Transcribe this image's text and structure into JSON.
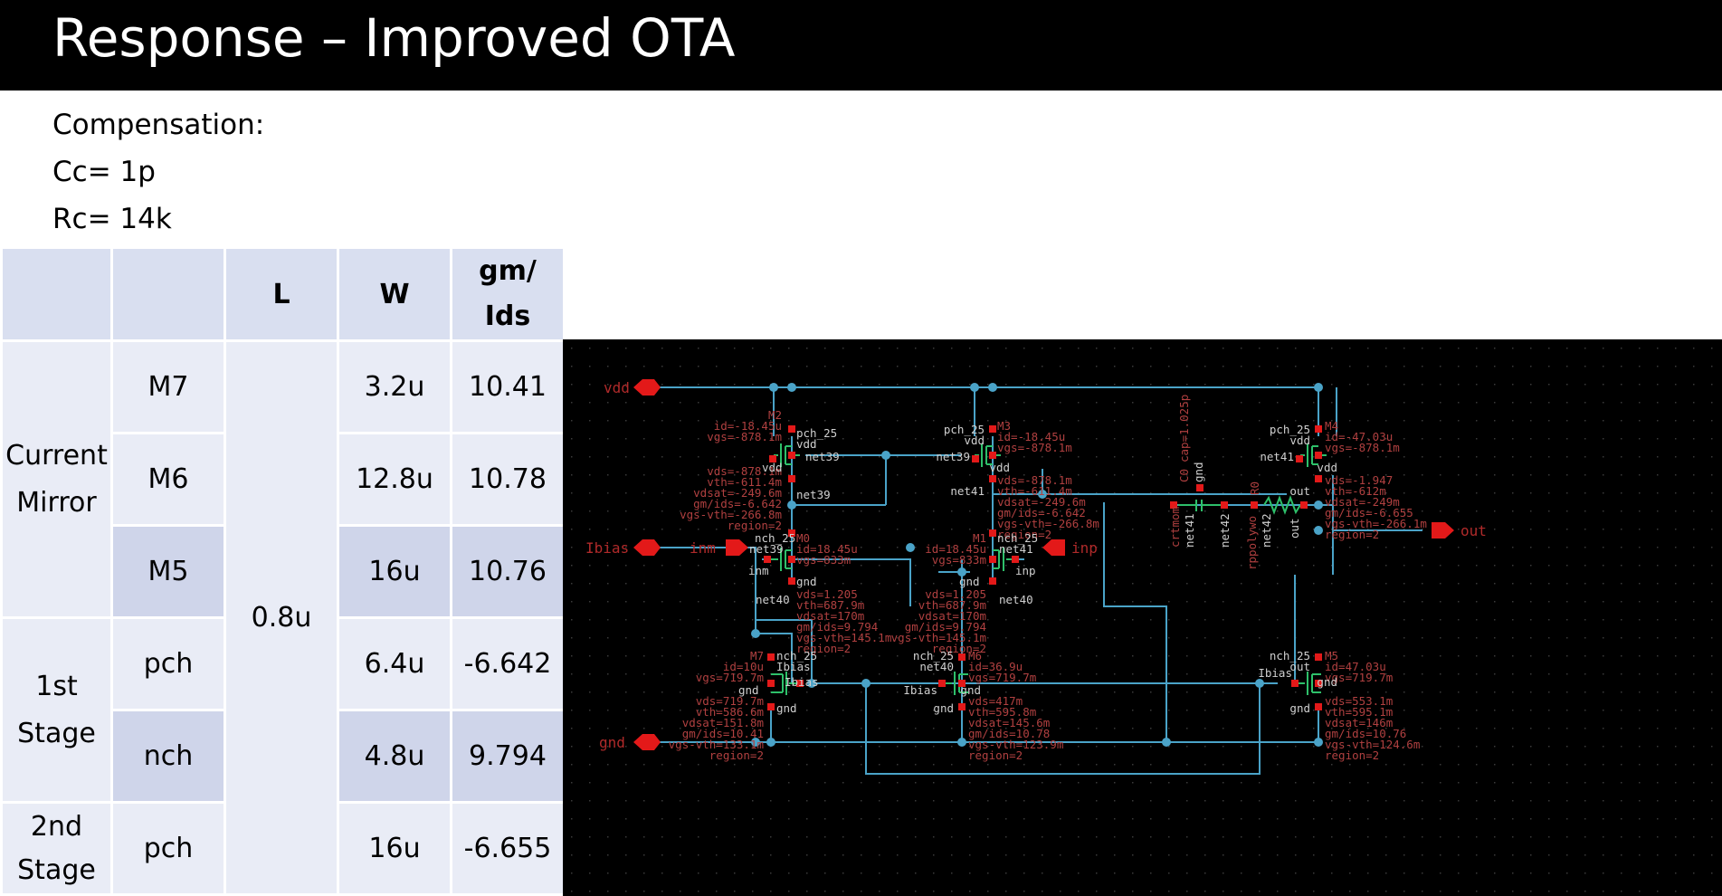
{
  "slide": {
    "title": "Response – Improved OTA"
  },
  "compensation": {
    "heading": "Compensation:",
    "cc": "Cc= 1p",
    "rc": "Rc= 14k"
  },
  "table": {
    "headers": [
      "",
      "",
      "L",
      "W",
      "gm/",
      "Ids"
    ],
    "groups": [
      "Current",
      "Mirror",
      "1st",
      "Stage",
      "2nd",
      "Stage"
    ],
    "shared_L": "0.8u",
    "rows": [
      {
        "device": "M7",
        "w": "3.2u",
        "gmids": "10.41"
      },
      {
        "device": "M6",
        "w": "12.8u",
        "gmids": "10.78"
      },
      {
        "device": "M5",
        "w": "16u",
        "gmids": "10.76"
      },
      {
        "device": "pch",
        "w": "6.4u",
        "gmids": "-6.642"
      },
      {
        "device": "nch",
        "w": "4.8u",
        "gmids": "9.794"
      },
      {
        "device": "pch",
        "w": "16u",
        "gmids": "-6.655"
      }
    ]
  },
  "schematic": {
    "pins": {
      "vdd": "vdd",
      "ibias": "Ibias",
      "gnd": "gnd",
      "inm": "inm",
      "inp": "inp",
      "out": "out"
    },
    "m2": {
      "name": "M2",
      "model": "pch_25",
      "id": "id=-18.45u",
      "vgs": "vgs=-878.1m",
      "vds": "vds=-878.1m",
      "vth": "vth=-611.4m",
      "vdsat": "vdsat=-249.6m",
      "gmids": "gm/ids=-6.642",
      "vov": "vgs-vth=-266.8m",
      "region": "region=2",
      "t_top": "vdd",
      "t_gate": "net39",
      "t_body": "vdd",
      "t_bot": "net39"
    },
    "m3": {
      "name": "M3",
      "model": "pch_25",
      "id": "id=-18.45u",
      "vgs": "vgs=-878.1m",
      "vds": "vds=-878.1m",
      "vth": "vth=-611.4m",
      "vdsat": "vdsat=-249.6m",
      "gmids": "gm/ids=-6.642",
      "vov": "vgs-vth=-266.8m",
      "region": "region=2",
      "t_top": "vdd",
      "t_gate": "net39",
      "t_body": "vdd",
      "t_bot": "net41"
    },
    "m4": {
      "name": "M4",
      "model": "pch_25",
      "id": "id=-47.03u",
      "vgs": "vgs=-878.1m",
      "vds": "vds=-1.947",
      "vth": "vth=-612m",
      "vdsat": "vdsat=-249m",
      "gmids": "gm/ids=-6.655",
      "vov": "vgs-vth=-266.1m",
      "region": "region=2",
      "t_top": "vdd",
      "t_gate": "net41",
      "t_body": "vdd",
      "t_bot": "out"
    },
    "m0": {
      "name": "M0",
      "model": "nch_25",
      "id": "id=18.45u",
      "vgs": "vgs=833m",
      "vds": "vds=1.205",
      "vth": "vth=687.9m",
      "vdsat": "vdsat=170m",
      "gmids": "gm/ids=9.794",
      "vov": "vgs-vth=145.1m",
      "region": "region=2",
      "t_top": "net39",
      "t_gate": "inm",
      "t_body": "gnd",
      "t_bot": "net40"
    },
    "m1": {
      "name": "M1",
      "model": "nch_25",
      "id": "id=18.45u",
      "vgs": "vgs=833m",
      "vds": "vds=1.205",
      "vth": "vth=687.9m",
      "vdsat": "vdsat=170m",
      "gmids": "gm/ids=9.794",
      "vov": "vgs-vth=145.1m",
      "region": "region=2",
      "t_top": "net41",
      "t_gate": "inp",
      "t_body": "gnd",
      "t_bot": "net40"
    },
    "m7": {
      "name": "M7",
      "model": "nch_25",
      "id": "id=10u",
      "vgs": "vgs=719.7m",
      "vds": "vds=719.7m",
      "vth": "vth=586.6m",
      "vdsat": "vdsat=151.8m",
      "gmids": "gm/ids=10.41",
      "vov": "vgs-vth=133.1m",
      "region": "region=2",
      "t_top": "Ibias",
      "t_gate": "Ibias",
      "t_body": "gnd",
      "t_bot": "gnd"
    },
    "m6": {
      "name": "M6",
      "model": "nch_25",
      "id": "id=36.9u",
      "vgs": "vgs=719.7m",
      "vds": "vds=417m",
      "vth": "vth=595.8m",
      "vdsat": "vdsat=145.6m",
      "gmids": "gm/ids=10.78",
      "vov": "vgs-vth=123.9m",
      "region": "region=2",
      "t_top": "net40",
      "t_gate": "Ibias",
      "t_body": "gnd",
      "t_bot": "gnd"
    },
    "m5": {
      "name": "M5",
      "model": "nch_25",
      "id": "id=47.03u",
      "vgs": "vgs=719.7m",
      "vds": "vds=553.1m",
      "vth": "vth=595.1m",
      "vdsat": "vdsat=146m",
      "gmids": "gm/ids=10.76",
      "vov": "vgs-vth=124.6m",
      "region": "region=2",
      "t_top": "out",
      "t_gate": "Ibias",
      "t_body": "gnd",
      "t_bot": "gnd"
    },
    "c0": {
      "name": "C0",
      "cap": "cap=1.025p",
      "model": "crtmom",
      "net_a": "net41",
      "net_b": "net42",
      "sub": "gnd"
    },
    "r0": {
      "name": "R0",
      "model": "rppolywo",
      "net_a": "net42",
      "net_b": "out"
    },
    "colors": {
      "background": "#000000",
      "wire": "#4aa3c8",
      "device": "#2ec06a",
      "pin": "#e31919",
      "label": "#b04040",
      "terminal": "#c8c8c8"
    }
  }
}
